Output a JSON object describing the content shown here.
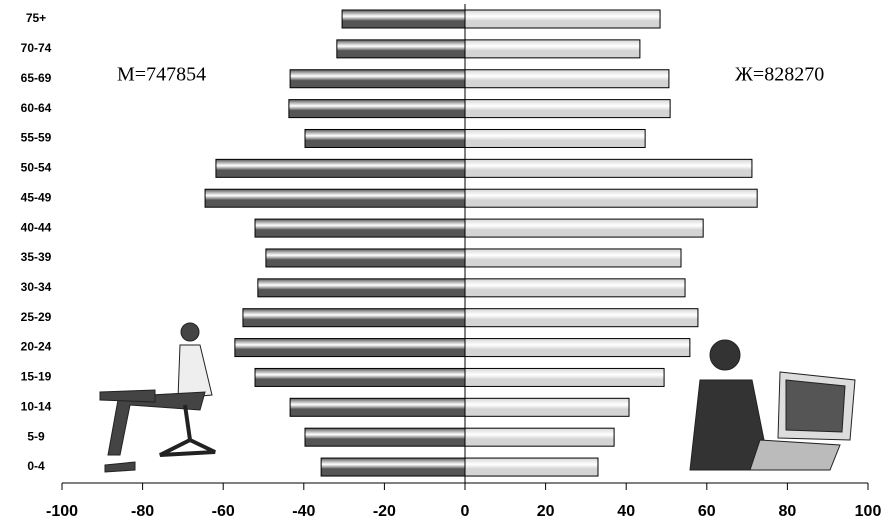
{
  "chart_data": {
    "type": "bar",
    "orientation": "horizontal",
    "categories": [
      "75+",
      "70-74",
      "65-69",
      "60-64",
      "55-59",
      "50-54",
      "45-49",
      "40-44",
      "35-39",
      "30-34",
      "25-29",
      "20-24",
      "15-19",
      "10-14",
      "5-9",
      "0-4"
    ],
    "series": [
      {
        "color": "#555555",
        "values": [
          -30.5,
          -31.8,
          -43.4,
          -43.7,
          -39.7,
          -61.8,
          -64.5,
          -52.1,
          -49.4,
          -51.4,
          -55.1,
          -57.1,
          -52.1,
          -43.4,
          -39.7,
          -35.7
        ]
      },
      {
        "color": "#d4d4d4",
        "values": [
          48.4,
          43.4,
          50.6,
          50.9,
          44.7,
          71.2,
          72.5,
          59.1,
          53.6,
          54.6,
          57.8,
          55.8,
          49.4,
          40.7,
          37,
          33
        ]
      }
    ],
    "xlim": [
      -100,
      100
    ],
    "xticks": [
      -100,
      -80,
      -60,
      -40,
      -20,
      0,
      20,
      40,
      60,
      80,
      100
    ],
    "annotations": [
      "М=747854",
      "Ж=828270"
    ]
  }
}
